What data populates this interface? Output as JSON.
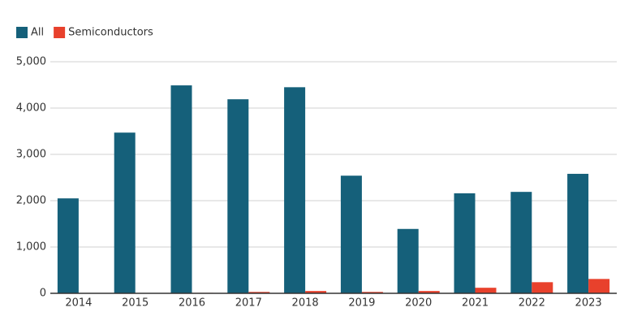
{
  "chart_data": {
    "type": "bar",
    "categories": [
      "2014",
      "2015",
      "2016",
      "2017",
      "2018",
      "2019",
      "2020",
      "2021",
      "2022",
      "2023"
    ],
    "series": [
      {
        "name": "All",
        "color": "#15607a",
        "values": [
          2050,
          3470,
          4490,
          4190,
          4450,
          2540,
          1390,
          2160,
          2190,
          2580
        ]
      },
      {
        "name": "Semiconductors",
        "color": "#e8412c",
        "values": [
          0,
          5,
          10,
          30,
          50,
          30,
          50,
          120,
          240,
          310
        ]
      }
    ],
    "ylim": [
      0,
      5000
    ],
    "yticks": [
      0,
      {
        "value": 1000,
        "label": "1,000"
      },
      {
        "value": 2000,
        "label": "2,000"
      },
      {
        "value": 3000,
        "label": "3,000"
      },
      {
        "value": 4000,
        "label": "4,000"
      },
      {
        "value": 5000,
        "label": "5,000"
      }
    ],
    "grid": true,
    "legend": "top-left"
  }
}
